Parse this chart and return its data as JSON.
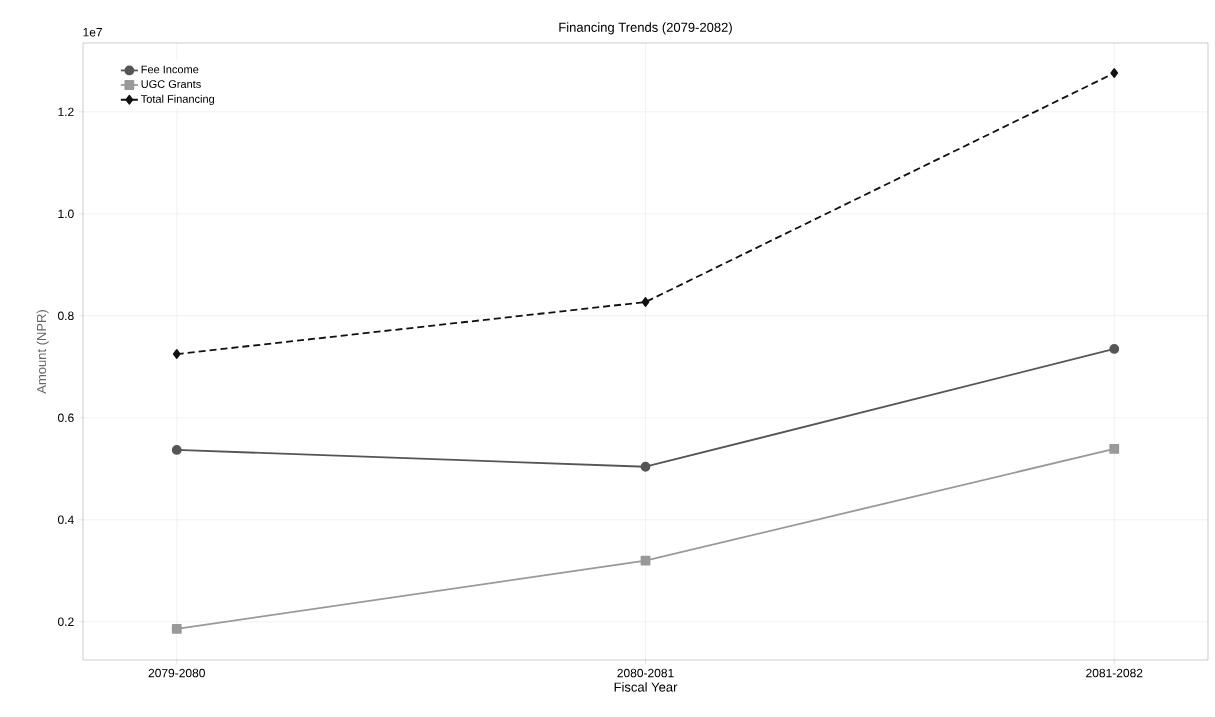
{
  "chart_data": {
    "type": "line",
    "title": "Financing Trends (2079-2082)",
    "xlabel": "Fiscal Year",
    "ylabel": "Amount (NPR)",
    "annotations": [
      "1e7"
    ],
    "categories": [
      "2079-2080",
      "2080-2081",
      "2081-2082"
    ],
    "series": [
      {
        "name": "Fee Income",
        "color": "#555555",
        "values": [
          0.537,
          0.504,
          0.735
        ],
        "marker": "circle",
        "line_style": "solid"
      },
      {
        "name": "UGC Grants",
        "color": "#999999",
        "values": [
          0.186,
          0.32,
          0.539
        ],
        "marker": "square",
        "line_style": "solid"
      },
      {
        "name": "Total Financing",
        "color": "#111111",
        "values": [
          0.725,
          0.827,
          1.276
        ],
        "marker": "diamond",
        "line_style": "dashed"
      }
    ],
    "ylim": [
      0.125,
      1.335
    ],
    "yticks": [
      0.2,
      0.4,
      0.6,
      0.8,
      {
        "value": 1.0,
        "label": "1.0"
      },
      1.2
    ],
    "grid": true,
    "legend": "top left"
  }
}
